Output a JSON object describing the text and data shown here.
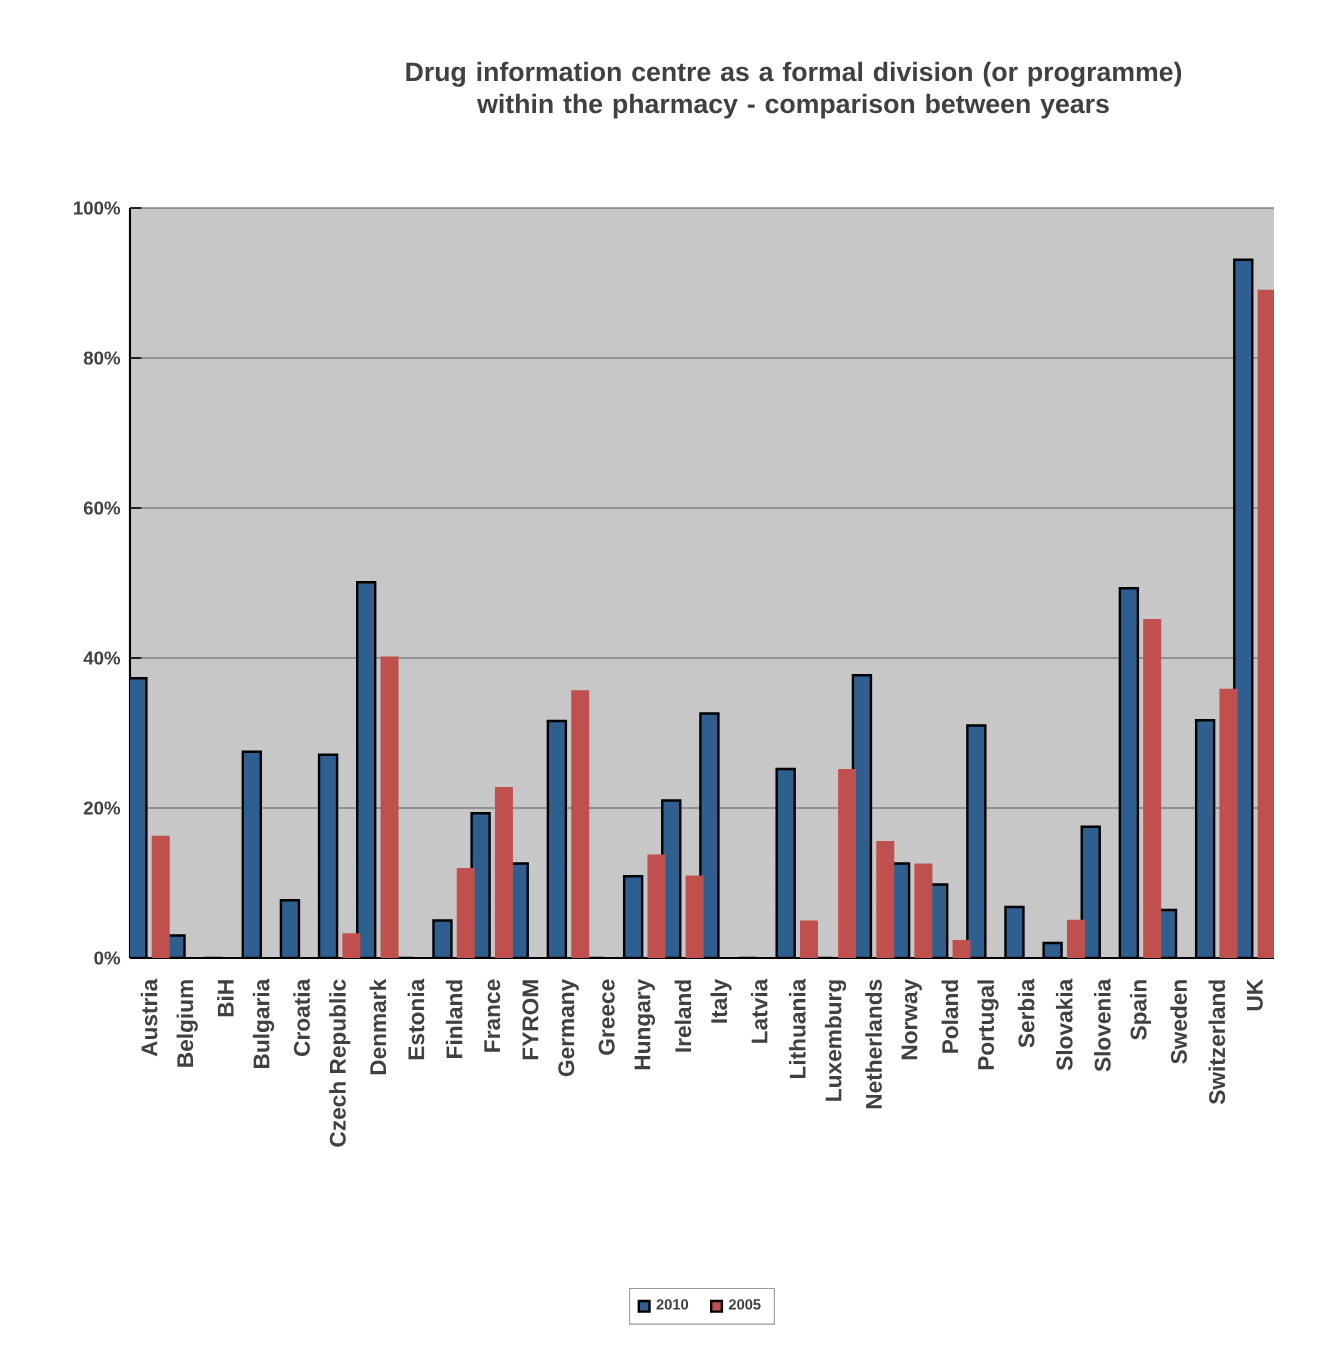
{
  "chart_data": {
    "type": "bar",
    "title": "Drug information centre as a formal division (or programme) within the pharmacy - comparison between years",
    "categories": [
      "Austria",
      "Belgium",
      "BiH",
      "Bulgaria",
      "Croatia",
      "Czech Republic",
      "Denmark",
      "Estonia",
      "Finland",
      "France",
      "FYROM",
      "Germany",
      "Greece",
      "Hungary",
      "Ireland",
      "Italy",
      "Latvia",
      "Lithuania",
      "Luxemburg",
      "Netherlands",
      "Norway",
      "Poland",
      "Portugal",
      "Serbia",
      "Slovakia",
      "Slovenia",
      "Spain",
      "Sweden",
      "Switzerland",
      "UK"
    ],
    "series": [
      {
        "name": "2010",
        "color": "#2e5f8e",
        "values": [
          37.3,
          3.0,
          0,
          27.5,
          7.7,
          27.1,
          50.1,
          0,
          5.0,
          19.3,
          12.6,
          31.6,
          0,
          10.9,
          21.0,
          32.6,
          0,
          25.2,
          0,
          37.7,
          12.6,
          9.8,
          31.0,
          6.8,
          2.0,
          17.5,
          49.3,
          6.4,
          31.7,
          93.1
        ]
      },
      {
        "name": "2005",
        "color": "#c0504d",
        "values": [
          16.3,
          0,
          0,
          0,
          0,
          3.3,
          40.2,
          0,
          12.0,
          22.8,
          0,
          35.7,
          0,
          13.8,
          11.0,
          0,
          0,
          5.0,
          25.2,
          15.6,
          12.6,
          2.4,
          0,
          0,
          5.1,
          0,
          45.2,
          0,
          35.9,
          89.1
        ]
      }
    ],
    "ylim": [
      0,
      100
    ],
    "yticks": [
      {
        "value": 0,
        "label": "0%"
      },
      {
        "value": 20,
        "label": "20%"
      },
      {
        "value": 40,
        "label": "40%"
      },
      {
        "value": 60,
        "label": "60%"
      },
      {
        "value": 80,
        "label": "80%"
      },
      {
        "value": 100,
        "label": "100%"
      }
    ],
    "grid": "y",
    "legend": "bottom"
  }
}
